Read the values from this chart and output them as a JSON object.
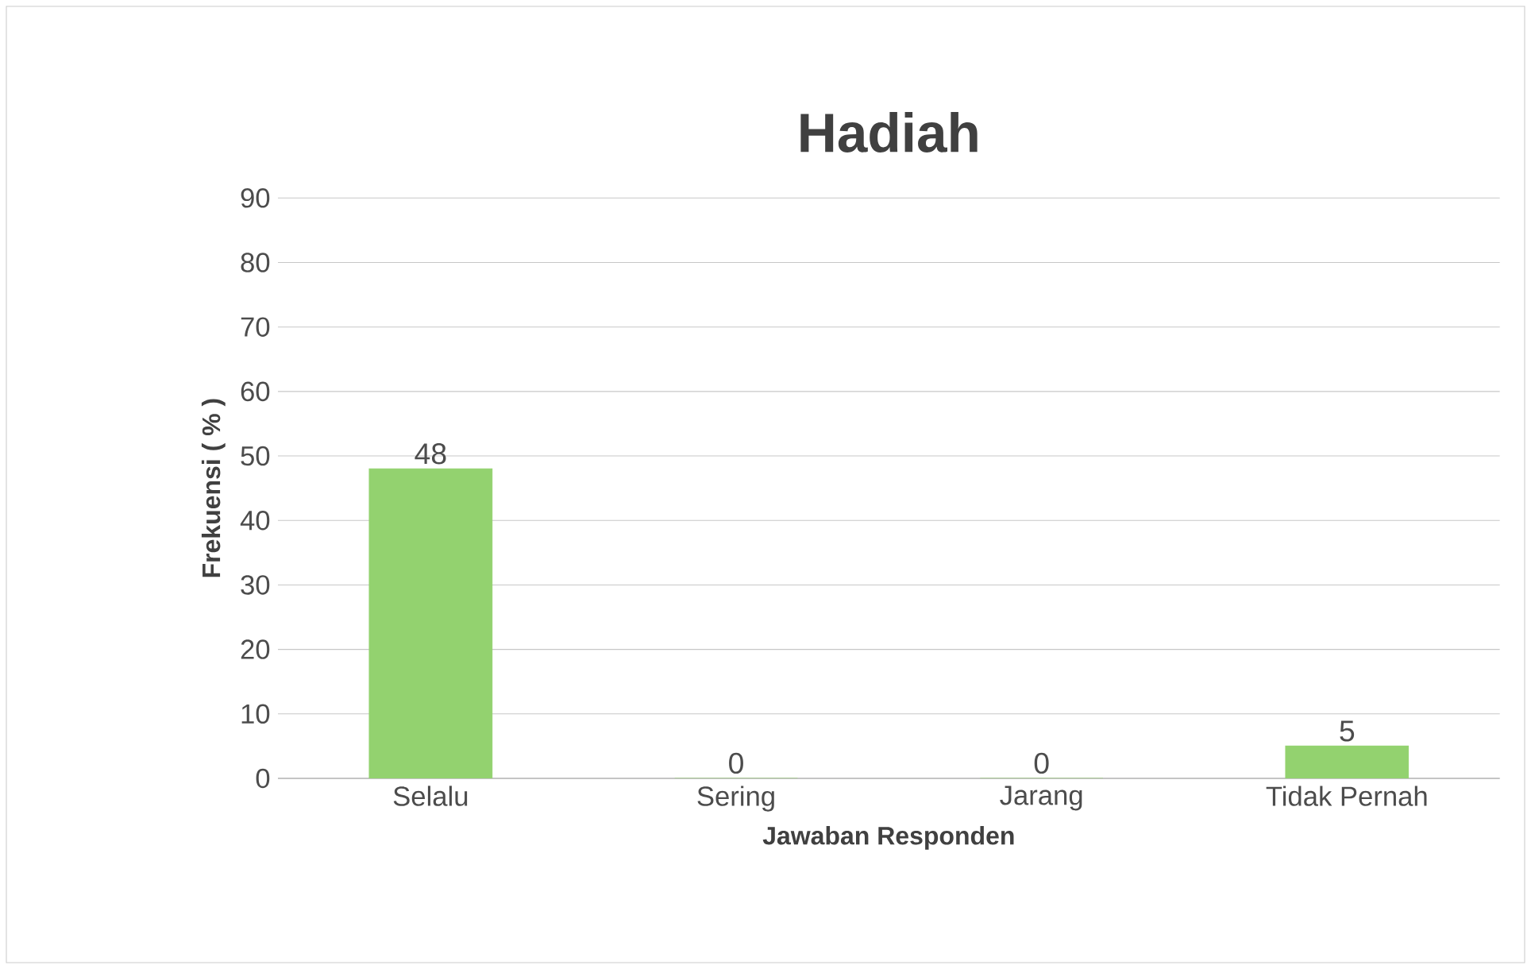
{
  "chart_data": {
    "type": "bar",
    "title": "Hadiah",
    "xlabel": "Jawaban Responden",
    "ylabel": "Frekuensi ( % )",
    "categories": [
      "Selalu",
      "Sering",
      "Jarang",
      "Tidak Pernah"
    ],
    "values": [
      48,
      0,
      0,
      5
    ],
    "color": "#93d26f",
    "ylim": [
      0,
      90
    ],
    "yticks": [
      0,
      10,
      20,
      30,
      40,
      50,
      60,
      70,
      80,
      90
    ],
    "grid": "y",
    "data_labels": true
  }
}
